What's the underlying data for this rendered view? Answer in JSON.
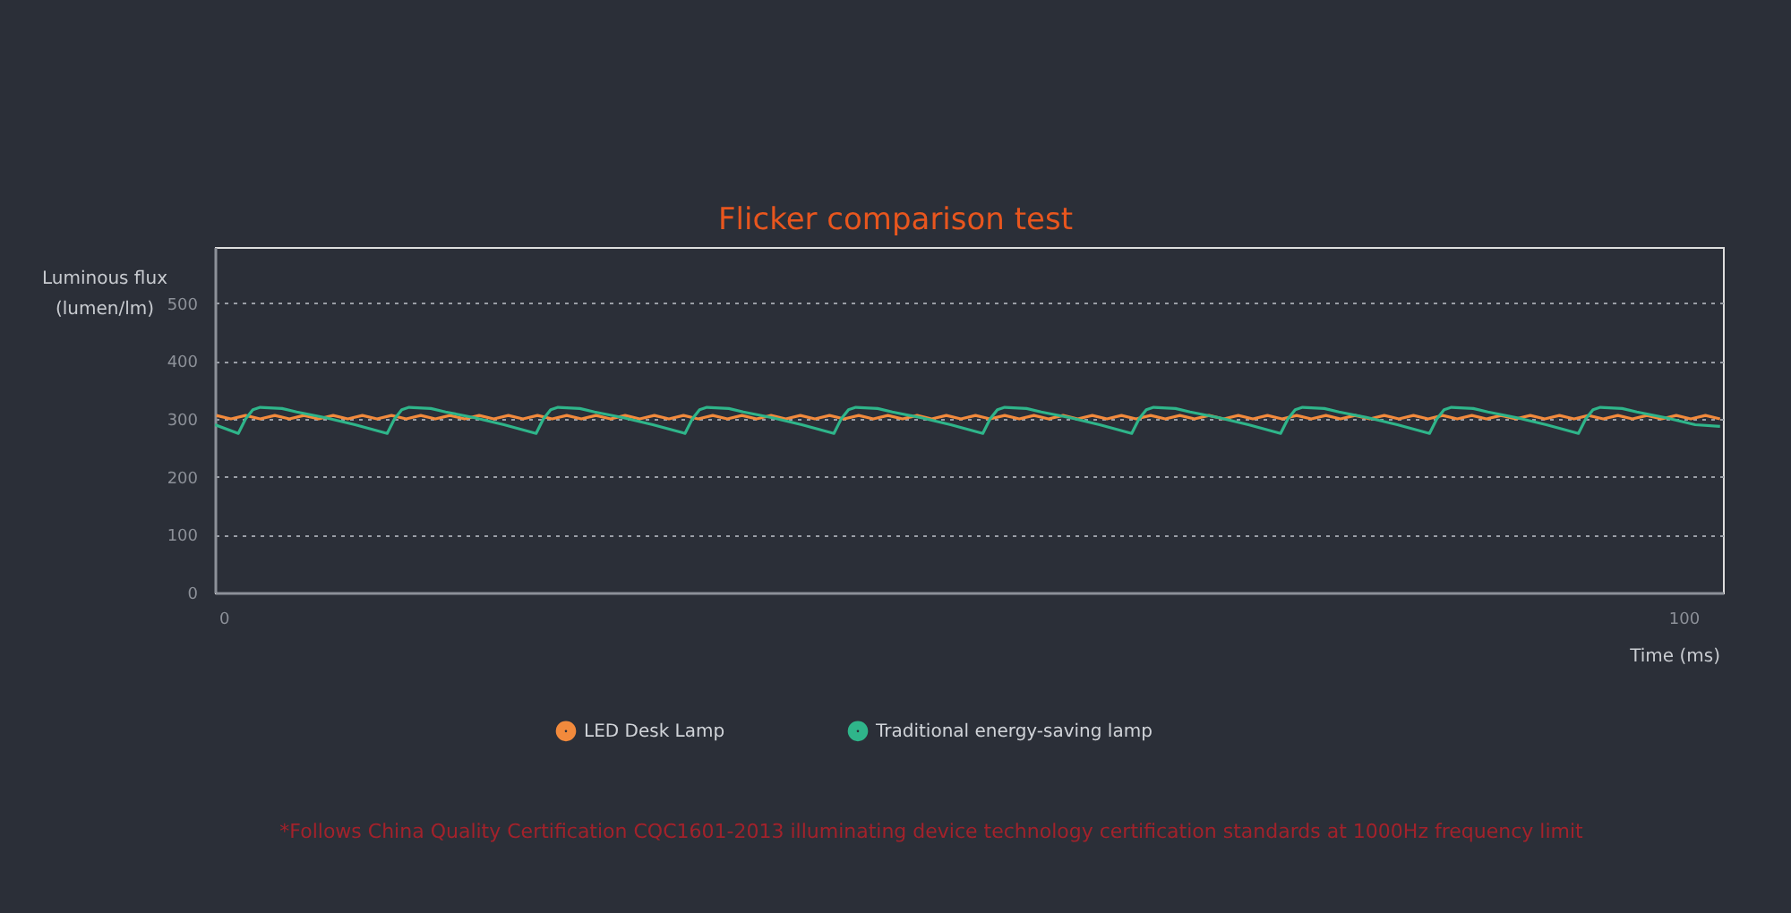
{
  "chart_data": {
    "type": "line",
    "title": "Flicker comparison test",
    "xlabel": "Time (ms)",
    "ylabel": "Luminous flux (lumen/lm)",
    "xlim": [
      -0.6,
      102.7
    ],
    "xticks": [
      0,
      100
    ],
    "ylim": [
      0,
      597
    ],
    "yticks": [
      0,
      100,
      200,
      300,
      400,
      500
    ],
    "grid": "y",
    "legend": "bottom",
    "marker": "none",
    "line_style": "solid",
    "annotations": [
      "*Follows China Quality Certification CQC1601-2013 illuminating device technology certification standards at 1000Hz frequency limit"
    ],
    "series": [
      {
        "name": "LED Desk Lamp",
        "color": "#f28a3c",
        "x": [
          -0.5,
          0.5,
          1.5,
          2.5,
          3.5,
          4.5,
          5.5,
          6.5,
          7.5,
          8.5,
          9.5,
          10.5,
          11.5,
          12.5,
          13.5,
          14.5,
          15.5,
          16.5,
          17.5,
          18.5,
          19.5,
          20.5,
          21.5,
          22.5,
          23.5,
          24.5,
          25.5,
          26.5,
          27.5,
          28.5,
          29.5,
          30.5,
          31.5,
          32.5,
          33.5,
          34.5,
          35.5,
          36.5,
          37.5,
          38.5,
          39.5,
          40.5,
          41.5,
          42.5,
          43.5,
          44.5,
          45.5,
          46.5,
          47.5,
          48.5,
          49.5,
          50.5,
          51.5,
          52.5,
          53.5,
          54.5,
          55.5,
          56.5,
          57.5,
          58.5,
          59.5,
          60.5,
          61.5,
          62.5,
          63.5,
          64.5,
          65.5,
          66.5,
          67.5,
          68.5,
          69.5,
          70.5,
          71.5,
          72.5,
          73.5,
          74.5,
          75.5,
          76.5,
          77.5,
          78.5,
          79.5,
          80.5,
          81.5,
          82.5,
          83.5,
          84.5,
          85.5,
          86.5,
          87.5,
          88.5,
          89.5,
          90.5,
          91.5,
          92.5,
          93.5,
          94.5,
          95.5,
          96.5,
          97.5,
          98.5,
          99.5,
          100.5,
          101.5,
          102.5
        ],
        "values": [
          306,
          300,
          306,
          300,
          306,
          300,
          306,
          300,
          306,
          300,
          306,
          300,
          306,
          300,
          306,
          300,
          306,
          300,
          306,
          300,
          306,
          300,
          306,
          300,
          306,
          300,
          306,
          300,
          306,
          300,
          306,
          300,
          306,
          300,
          306,
          300,
          306,
          300,
          306,
          300,
          306,
          300,
          306,
          300,
          306,
          300,
          306,
          300,
          306,
          300,
          306,
          300,
          306,
          300,
          306,
          300,
          306,
          300,
          306,
          300,
          306,
          300,
          306,
          300,
          306,
          300,
          306,
          300,
          306,
          300,
          306,
          300,
          306,
          300,
          306,
          300,
          306,
          300,
          306,
          300,
          306,
          300,
          306,
          300,
          306,
          300,
          306,
          300,
          306,
          300,
          306,
          300,
          306,
          300,
          306,
          300,
          306,
          300,
          306,
          300,
          306,
          300,
          306,
          300
        ]
      },
      {
        "name": "Traditional energy-saving lamp",
        "color": "#2fb58a",
        "x": [
          -0.6,
          1.0,
          1.5,
          2.0,
          2.5,
          4.0,
          5.0,
          7.0,
          9.0,
          11.2,
          11.7,
          12.2,
          12.7,
          14.2,
          15.2,
          17.2,
          19.2,
          21.4,
          21.9,
          22.4,
          22.9,
          24.4,
          25.4,
          27.4,
          29.4,
          31.6,
          32.1,
          32.6,
          33.1,
          34.6,
          35.6,
          37.6,
          39.6,
          41.8,
          42.3,
          42.8,
          43.3,
          44.8,
          45.8,
          47.8,
          49.8,
          52.0,
          52.5,
          53.0,
          53.5,
          55.0,
          56.0,
          58.0,
          60.0,
          62.2,
          62.7,
          63.2,
          63.7,
          65.2,
          66.2,
          68.2,
          70.2,
          72.4,
          72.9,
          73.4,
          73.9,
          75.4,
          76.4,
          78.4,
          80.4,
          82.6,
          83.1,
          83.6,
          84.1,
          85.6,
          86.6,
          88.6,
          90.6,
          92.8,
          93.3,
          93.8,
          94.3,
          95.8,
          96.8,
          98.8,
          100.8,
          102.5
        ],
        "values": [
          290,
          275,
          300,
          316,
          320,
          318,
          312,
          302,
          290,
          275,
          300,
          316,
          320,
          318,
          312,
          302,
          290,
          275,
          300,
          316,
          320,
          318,
          312,
          302,
          290,
          275,
          300,
          316,
          320,
          318,
          312,
          302,
          290,
          275,
          300,
          316,
          320,
          318,
          312,
          302,
          290,
          275,
          300,
          316,
          320,
          318,
          312,
          302,
          290,
          275,
          300,
          316,
          320,
          318,
          312,
          302,
          290,
          275,
          300,
          316,
          320,
          318,
          312,
          302,
          290,
          275,
          300,
          316,
          320,
          318,
          312,
          302,
          290,
          275,
          300,
          316,
          320,
          318,
          312,
          302,
          290,
          287
        ]
      }
    ]
  }
}
